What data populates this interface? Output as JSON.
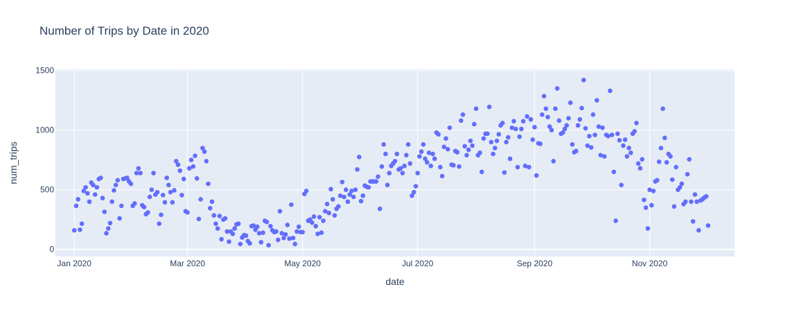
{
  "chart_data": {
    "type": "scatter",
    "title": "Number of Trips by Date in 2020",
    "xlabel": "date",
    "ylabel": "num_trips",
    "x_range": [
      "2019-12-22",
      "2020-12-16"
    ],
    "ylim": [
      -60,
      1510
    ],
    "grid": true,
    "legend": "none",
    "x_ticks": [
      {
        "date": "2020-01-01",
        "label": "Jan 2020"
      },
      {
        "date": "2020-03-01",
        "label": "Mar 2020"
      },
      {
        "date": "2020-05-01",
        "label": "May 2020"
      },
      {
        "date": "2020-07-01",
        "label": "Jul 2020"
      },
      {
        "date": "2020-09-01",
        "label": "Sep 2020"
      },
      {
        "date": "2020-11-01",
        "label": "Nov 2020"
      }
    ],
    "y_ticks": [
      {
        "value": 0,
        "label": "0"
      },
      {
        "value": 500,
        "label": "500"
      },
      {
        "value": 1000,
        "label": "1000"
      },
      {
        "value": 1500,
        "label": "1500"
      }
    ],
    "colors": {
      "marker": "#636efa",
      "plot_bg": "#e5ecf6",
      "grid": "#ffffff",
      "text": "#2a3f5f"
    },
    "points": [
      [
        "2020-01-01",
        160
      ],
      [
        "2020-01-02",
        365
      ],
      [
        "2020-01-03",
        420
      ],
      [
        "2020-01-04",
        165
      ],
      [
        "2020-01-05",
        215
      ],
      [
        "2020-01-06",
        490
      ],
      [
        "2020-01-07",
        520
      ],
      [
        "2020-01-08",
        470
      ],
      [
        "2020-01-09",
        400
      ],
      [
        "2020-01-10",
        560
      ],
      [
        "2020-01-11",
        540
      ],
      [
        "2020-01-12",
        460
      ],
      [
        "2020-01-13",
        520
      ],
      [
        "2020-01-14",
        590
      ],
      [
        "2020-01-15",
        600
      ],
      [
        "2020-01-16",
        430
      ],
      [
        "2020-01-17",
        315
      ],
      [
        "2020-01-18",
        135
      ],
      [
        "2020-01-19",
        175
      ],
      [
        "2020-01-20",
        220
      ],
      [
        "2020-01-21",
        400
      ],
      [
        "2020-01-22",
        495
      ],
      [
        "2020-01-23",
        540
      ],
      [
        "2020-01-24",
        580
      ],
      [
        "2020-01-25",
        260
      ],
      [
        "2020-01-26",
        365
      ],
      [
        "2020-01-27",
        590
      ],
      [
        "2020-01-28",
        595
      ],
      [
        "2020-01-29",
        600
      ],
      [
        "2020-01-30",
        570
      ],
      [
        "2020-01-31",
        550
      ],
      [
        "2020-02-01",
        365
      ],
      [
        "2020-02-02",
        385
      ],
      [
        "2020-02-03",
        640
      ],
      [
        "2020-02-04",
        680
      ],
      [
        "2020-02-05",
        640
      ],
      [
        "2020-02-06",
        370
      ],
      [
        "2020-02-07",
        355
      ],
      [
        "2020-02-08",
        295
      ],
      [
        "2020-02-09",
        310
      ],
      [
        "2020-02-10",
        440
      ],
      [
        "2020-02-11",
        500
      ],
      [
        "2020-02-12",
        640
      ],
      [
        "2020-02-13",
        460
      ],
      [
        "2020-02-14",
        480
      ],
      [
        "2020-02-15",
        215
      ],
      [
        "2020-02-16",
        290
      ],
      [
        "2020-02-17",
        455
      ],
      [
        "2020-02-18",
        395
      ],
      [
        "2020-02-19",
        600
      ],
      [
        "2020-02-20",
        540
      ],
      [
        "2020-02-21",
        480
      ],
      [
        "2020-02-22",
        395
      ],
      [
        "2020-02-23",
        495
      ],
      [
        "2020-02-24",
        740
      ],
      [
        "2020-02-25",
        710
      ],
      [
        "2020-02-26",
        660
      ],
      [
        "2020-02-27",
        455
      ],
      [
        "2020-02-28",
        590
      ],
      [
        "2020-02-29",
        320
      ],
      [
        "2020-03-01",
        310
      ],
      [
        "2020-03-02",
        680
      ],
      [
        "2020-03-03",
        750
      ],
      [
        "2020-03-04",
        695
      ],
      [
        "2020-03-05",
        785
      ],
      [
        "2020-03-06",
        595
      ],
      [
        "2020-03-07",
        255
      ],
      [
        "2020-03-08",
        420
      ],
      [
        "2020-03-09",
        850
      ],
      [
        "2020-03-10",
        820
      ],
      [
        "2020-03-11",
        740
      ],
      [
        "2020-03-12",
        550
      ],
      [
        "2020-03-13",
        345
      ],
      [
        "2020-03-14",
        400
      ],
      [
        "2020-03-15",
        285
      ],
      [
        "2020-03-16",
        215
      ],
      [
        "2020-03-17",
        175
      ],
      [
        "2020-03-18",
        280
      ],
      [
        "2020-03-19",
        85
      ],
      [
        "2020-03-20",
        250
      ],
      [
        "2020-03-21",
        260
      ],
      [
        "2020-03-22",
        150
      ],
      [
        "2020-03-23",
        65
      ],
      [
        "2020-03-24",
        150
      ],
      [
        "2020-03-25",
        130
      ],
      [
        "2020-03-26",
        175
      ],
      [
        "2020-03-27",
        210
      ],
      [
        "2020-03-28",
        215
      ],
      [
        "2020-03-29",
        45
      ],
      [
        "2020-03-30",
        100
      ],
      [
        "2020-03-31",
        120
      ],
      [
        "2020-04-01",
        115
      ],
      [
        "2020-04-02",
        70
      ],
      [
        "2020-04-03",
        50
      ],
      [
        "2020-04-04",
        195
      ],
      [
        "2020-04-05",
        200
      ],
      [
        "2020-04-06",
        165
      ],
      [
        "2020-04-07",
        190
      ],
      [
        "2020-04-08",
        135
      ],
      [
        "2020-04-09",
        60
      ],
      [
        "2020-04-10",
        140
      ],
      [
        "2020-04-11",
        240
      ],
      [
        "2020-04-12",
        230
      ],
      [
        "2020-04-13",
        35
      ],
      [
        "2020-04-14",
        195
      ],
      [
        "2020-04-15",
        160
      ],
      [
        "2020-04-16",
        145
      ],
      [
        "2020-04-17",
        150
      ],
      [
        "2020-04-18",
        80
      ],
      [
        "2020-04-19",
        320
      ],
      [
        "2020-04-20",
        135
      ],
      [
        "2020-04-21",
        95
      ],
      [
        "2020-04-22",
        125
      ],
      [
        "2020-04-23",
        205
      ],
      [
        "2020-04-24",
        90
      ],
      [
        "2020-04-25",
        375
      ],
      [
        "2020-04-26",
        95
      ],
      [
        "2020-04-27",
        45
      ],
      [
        "2020-04-28",
        150
      ],
      [
        "2020-04-29",
        190
      ],
      [
        "2020-04-30",
        145
      ],
      [
        "2020-05-01",
        145
      ],
      [
        "2020-05-02",
        465
      ],
      [
        "2020-05-03",
        490
      ],
      [
        "2020-05-04",
        240
      ],
      [
        "2020-05-05",
        250
      ],
      [
        "2020-05-06",
        225
      ],
      [
        "2020-05-07",
        275
      ],
      [
        "2020-05-08",
        195
      ],
      [
        "2020-05-09",
        130
      ],
      [
        "2020-05-10",
        270
      ],
      [
        "2020-05-11",
        140
      ],
      [
        "2020-05-12",
        240
      ],
      [
        "2020-05-13",
        320
      ],
      [
        "2020-05-14",
        380
      ],
      [
        "2020-05-15",
        305
      ],
      [
        "2020-05-16",
        505
      ],
      [
        "2020-05-17",
        420
      ],
      [
        "2020-05-18",
        285
      ],
      [
        "2020-05-19",
        340
      ],
      [
        "2020-05-20",
        360
      ],
      [
        "2020-05-21",
        450
      ],
      [
        "2020-05-22",
        565
      ],
      [
        "2020-05-23",
        440
      ],
      [
        "2020-05-24",
        500
      ],
      [
        "2020-05-25",
        400
      ],
      [
        "2020-05-26",
        460
      ],
      [
        "2020-05-27",
        490
      ],
      [
        "2020-05-28",
        440
      ],
      [
        "2020-05-29",
        500
      ],
      [
        "2020-05-30",
        670
      ],
      [
        "2020-05-31",
        775
      ],
      [
        "2020-06-01",
        405
      ],
      [
        "2020-06-02",
        450
      ],
      [
        "2020-06-03",
        535
      ],
      [
        "2020-06-04",
        525
      ],
      [
        "2020-06-05",
        520
      ],
      [
        "2020-06-06",
        570
      ],
      [
        "2020-06-07",
        570
      ],
      [
        "2020-06-08",
        570
      ],
      [
        "2020-06-09",
        570
      ],
      [
        "2020-06-10",
        610
      ],
      [
        "2020-06-11",
        340
      ],
      [
        "2020-06-12",
        695
      ],
      [
        "2020-06-13",
        880
      ],
      [
        "2020-06-14",
        800
      ],
      [
        "2020-06-15",
        540
      ],
      [
        "2020-06-16",
        640
      ],
      [
        "2020-06-17",
        700
      ],
      [
        "2020-06-18",
        720
      ],
      [
        "2020-06-19",
        740
      ],
      [
        "2020-06-20",
        800
      ],
      [
        "2020-06-21",
        670
      ],
      [
        "2020-06-22",
        680
      ],
      [
        "2020-06-23",
        640
      ],
      [
        "2020-06-24",
        700
      ],
      [
        "2020-06-25",
        790
      ],
      [
        "2020-06-26",
        880
      ],
      [
        "2020-06-27",
        720
      ],
      [
        "2020-06-28",
        450
      ],
      [
        "2020-06-29",
        480
      ],
      [
        "2020-06-30",
        530
      ],
      [
        "2020-07-01",
        640
      ],
      [
        "2020-07-02",
        780
      ],
      [
        "2020-07-03",
        820
      ],
      [
        "2020-07-04",
        880
      ],
      [
        "2020-07-05",
        760
      ],
      [
        "2020-07-06",
        730
      ],
      [
        "2020-07-07",
        810
      ],
      [
        "2020-07-08",
        700
      ],
      [
        "2020-07-09",
        800
      ],
      [
        "2020-07-10",
        760
      ],
      [
        "2020-07-11",
        980
      ],
      [
        "2020-07-12",
        965
      ],
      [
        "2020-07-13",
        690
      ],
      [
        "2020-07-14",
        615
      ],
      [
        "2020-07-15",
        860
      ],
      [
        "2020-07-16",
        930
      ],
      [
        "2020-07-17",
        840
      ],
      [
        "2020-07-18",
        1020
      ],
      [
        "2020-07-19",
        710
      ],
      [
        "2020-07-20",
        705
      ],
      [
        "2020-07-21",
        825
      ],
      [
        "2020-07-22",
        815
      ],
      [
        "2020-07-23",
        695
      ],
      [
        "2020-07-24",
        1080
      ],
      [
        "2020-07-25",
        1130
      ],
      [
        "2020-07-26",
        865
      ],
      [
        "2020-07-27",
        790
      ],
      [
        "2020-07-28",
        835
      ],
      [
        "2020-07-29",
        910
      ],
      [
        "2020-07-30",
        870
      ],
      [
        "2020-07-31",
        1050
      ],
      [
        "2020-08-01",
        1180
      ],
      [
        "2020-08-02",
        790
      ],
      [
        "2020-08-03",
        810
      ],
      [
        "2020-08-04",
        650
      ],
      [
        "2020-08-05",
        930
      ],
      [
        "2020-08-06",
        970
      ],
      [
        "2020-08-07",
        970
      ],
      [
        "2020-08-08",
        1195
      ],
      [
        "2020-08-09",
        900
      ],
      [
        "2020-08-10",
        800
      ],
      [
        "2020-08-11",
        850
      ],
      [
        "2020-08-12",
        910
      ],
      [
        "2020-08-13",
        965
      ],
      [
        "2020-08-14",
        1040
      ],
      [
        "2020-08-15",
        1060
      ],
      [
        "2020-08-16",
        645
      ],
      [
        "2020-08-17",
        900
      ],
      [
        "2020-08-18",
        940
      ],
      [
        "2020-08-19",
        760
      ],
      [
        "2020-08-20",
        1020
      ],
      [
        "2020-08-21",
        1075
      ],
      [
        "2020-08-22",
        1010
      ],
      [
        "2020-08-23",
        690
      ],
      [
        "2020-08-24",
        945
      ],
      [
        "2020-08-25",
        1010
      ],
      [
        "2020-08-26",
        1075
      ],
      [
        "2020-08-27",
        700
      ],
      [
        "2020-08-28",
        1115
      ],
      [
        "2020-08-29",
        690
      ],
      [
        "2020-08-30",
        1090
      ],
      [
        "2020-08-31",
        920
      ],
      [
        "2020-09-01",
        1025
      ],
      [
        "2020-09-02",
        620
      ],
      [
        "2020-09-03",
        890
      ],
      [
        "2020-09-04",
        885
      ],
      [
        "2020-09-05",
        1130
      ],
      [
        "2020-09-06",
        1285
      ],
      [
        "2020-09-07",
        1180
      ],
      [
        "2020-09-08",
        1110
      ],
      [
        "2020-09-09",
        1030
      ],
      [
        "2020-09-10",
        1000
      ],
      [
        "2020-09-11",
        740
      ],
      [
        "2020-09-12",
        1180
      ],
      [
        "2020-09-13",
        1350
      ],
      [
        "2020-09-14",
        1080
      ],
      [
        "2020-09-15",
        970
      ],
      [
        "2020-09-16",
        980
      ],
      [
        "2020-09-17",
        1010
      ],
      [
        "2020-09-18",
        1040
      ],
      [
        "2020-09-19",
        1100
      ],
      [
        "2020-09-20",
        1230
      ],
      [
        "2020-09-21",
        880
      ],
      [
        "2020-09-22",
        815
      ],
      [
        "2020-09-23",
        825
      ],
      [
        "2020-09-24",
        1040
      ],
      [
        "2020-09-25",
        1090
      ],
      [
        "2020-09-26",
        1185
      ],
      [
        "2020-09-27",
        1420
      ],
      [
        "2020-09-28",
        1015
      ],
      [
        "2020-09-29",
        870
      ],
      [
        "2020-09-30",
        950
      ],
      [
        "2020-10-01",
        855
      ],
      [
        "2020-10-02",
        1130
      ],
      [
        "2020-10-03",
        960
      ],
      [
        "2020-10-04",
        1250
      ],
      [
        "2020-10-05",
        1030
      ],
      [
        "2020-10-06",
        790
      ],
      [
        "2020-10-07",
        1020
      ],
      [
        "2020-10-08",
        780
      ],
      [
        "2020-10-09",
        960
      ],
      [
        "2020-10-10",
        950
      ],
      [
        "2020-10-11",
        1330
      ],
      [
        "2020-10-12",
        960
      ],
      [
        "2020-10-13",
        650
      ],
      [
        "2020-10-14",
        240
      ],
      [
        "2020-10-15",
        970
      ],
      [
        "2020-10-16",
        915
      ],
      [
        "2020-10-17",
        540
      ],
      [
        "2020-10-18",
        870
      ],
      [
        "2020-10-19",
        920
      ],
      [
        "2020-10-20",
        780
      ],
      [
        "2020-10-21",
        850
      ],
      [
        "2020-10-22",
        810
      ],
      [
        "2020-10-23",
        970
      ],
      [
        "2020-10-24",
        990
      ],
      [
        "2020-10-25",
        1060
      ],
      [
        "2020-10-26",
        720
      ],
      [
        "2020-10-27",
        680
      ],
      [
        "2020-10-28",
        755
      ],
      [
        "2020-10-29",
        415
      ],
      [
        "2020-10-30",
        350
      ],
      [
        "2020-10-31",
        175
      ],
      [
        "2020-11-01",
        500
      ],
      [
        "2020-11-02",
        370
      ],
      [
        "2020-11-03",
        490
      ],
      [
        "2020-11-04",
        570
      ],
      [
        "2020-11-05",
        580
      ],
      [
        "2020-11-06",
        735
      ],
      [
        "2020-11-07",
        850
      ],
      [
        "2020-11-08",
        1180
      ],
      [
        "2020-11-09",
        935
      ],
      [
        "2020-11-10",
        730
      ],
      [
        "2020-11-11",
        800
      ],
      [
        "2020-11-12",
        780
      ],
      [
        "2020-11-13",
        585
      ],
      [
        "2020-11-14",
        360
      ],
      [
        "2020-11-15",
        690
      ],
      [
        "2020-11-16",
        500
      ],
      [
        "2020-11-17",
        520
      ],
      [
        "2020-11-18",
        550
      ],
      [
        "2020-11-19",
        380
      ],
      [
        "2020-11-20",
        400
      ],
      [
        "2020-11-21",
        630
      ],
      [
        "2020-11-22",
        755
      ],
      [
        "2020-11-23",
        400
      ],
      [
        "2020-11-24",
        235
      ],
      [
        "2020-11-25",
        460
      ],
      [
        "2020-11-26",
        400
      ],
      [
        "2020-11-27",
        160
      ],
      [
        "2020-11-28",
        410
      ],
      [
        "2020-11-29",
        420
      ],
      [
        "2020-11-30",
        435
      ],
      [
        "2020-12-01",
        445
      ],
      [
        "2020-12-02",
        200
      ]
    ]
  }
}
